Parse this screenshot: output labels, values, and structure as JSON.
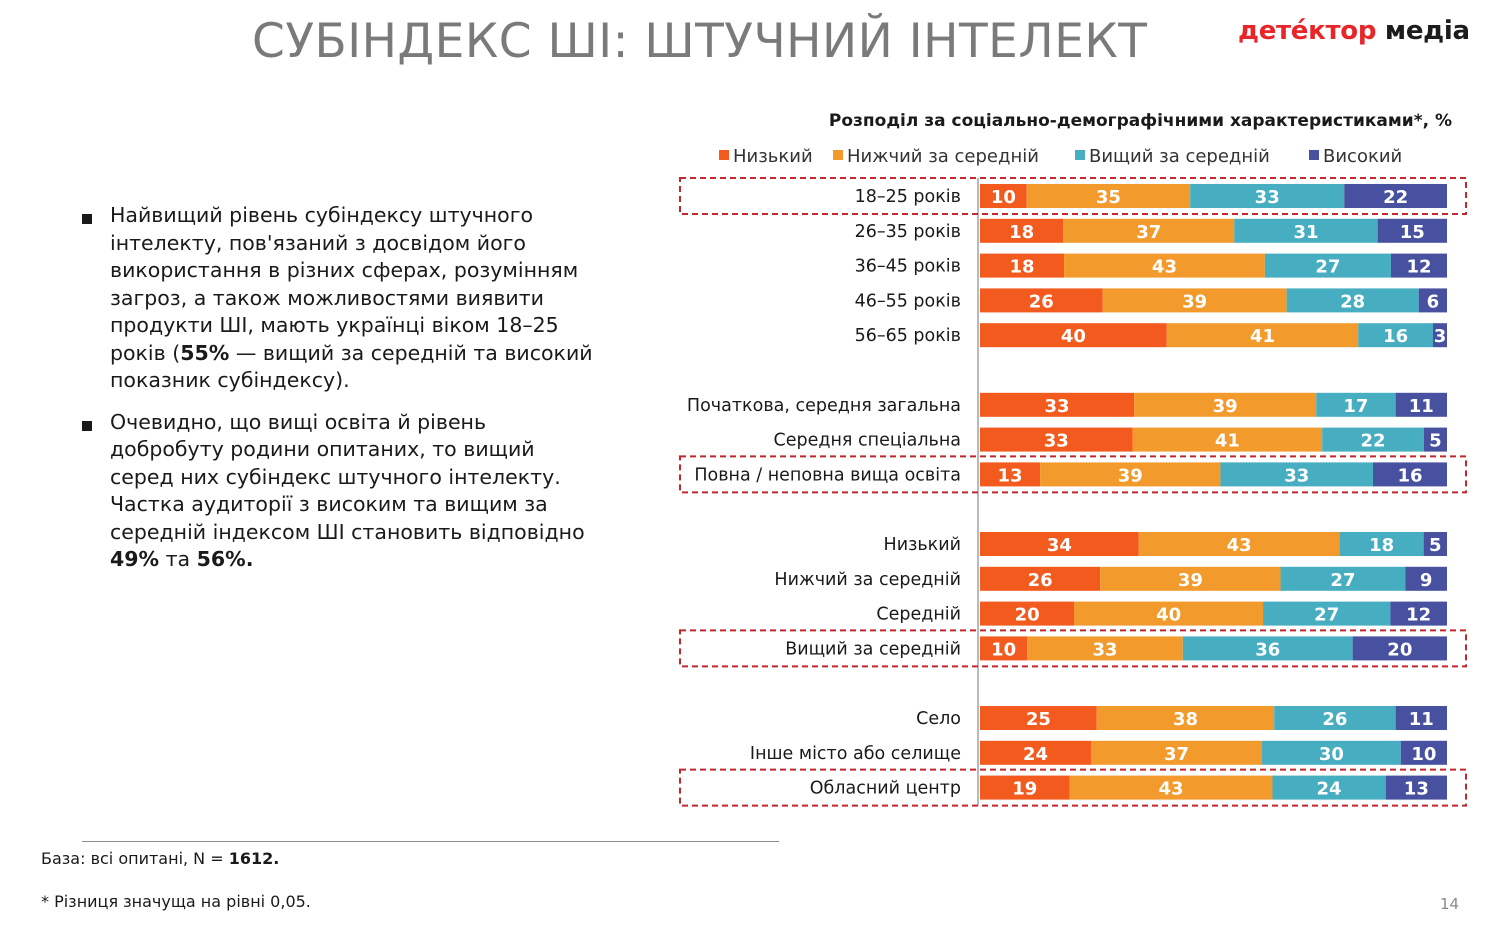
{
  "header": {
    "title": "СУБІНДЕКС ШІ: ШТУЧНИЙ ІНТЕЛЕКТ",
    "logo_part1": "детéктор",
    "logo_part2": "медіа"
  },
  "bullets": [
    {
      "t1": "Найвищий рівень субіндексу штучного інтелекту, пов'язаний з досвідом його використання в різних сферах, розумінням загроз, а також можливостями виявити продукти ШІ, мають українці віком 18–25 років (",
      "b1": "55%",
      "t2": " — вищий за середній та високий показник субіндексу)."
    },
    {
      "t1": "Очевидно, що вищі освіта й рівень добробуту родини опитаних, то вищий серед них субіндекс штучного інтелекту. Частка аудиторії з високим та вищим за середній індексом ШІ становить відповідно ",
      "b1": "49%",
      "t2": " та ",
      "b2": "56%."
    }
  ],
  "footer": {
    "base_prefix": "База: всі опитані, N = ",
    "base_n": "1612.",
    "significance": "* Різниця значуща на рівні 0,05.",
    "page": "14"
  },
  "chart_data": {
    "type": "bar",
    "orientation": "horizontal",
    "stacked": true,
    "title": "Розподіл за соціально-демографічними характеристиками*, %",
    "legend_position": "top",
    "series": [
      {
        "name": "Низький",
        "color": "#f25a1e"
      },
      {
        "name": "Нижчий за середній",
        "color": "#f39a2c"
      },
      {
        "name": "Вищий за середній",
        "color": "#47aec2"
      },
      {
        "name": "Високий",
        "color": "#47519f"
      }
    ],
    "groups": [
      {
        "rows": [
          {
            "label": "18–25 років",
            "values": [
              10,
              35,
              33,
              22
            ],
            "highlight": true
          },
          {
            "label": "26–35 років",
            "values": [
              18,
              37,
              31,
              15
            ]
          },
          {
            "label": "36–45 років",
            "values": [
              18,
              43,
              27,
              12
            ]
          },
          {
            "label": "46–55 років",
            "values": [
              26,
              39,
              28,
              6
            ]
          },
          {
            "label": "56–65 років",
            "values": [
              40,
              41,
              16,
              3
            ]
          }
        ]
      },
      {
        "rows": [
          {
            "label": "Початкова, середня загальна",
            "values": [
              33,
              39,
              17,
              11
            ]
          },
          {
            "label": "Середня спеціальна",
            "values": [
              33,
              41,
              22,
              5
            ]
          },
          {
            "label": "Повна / неповна вища освіта",
            "values": [
              13,
              39,
              33,
              16
            ],
            "highlight": true
          }
        ]
      },
      {
        "rows": [
          {
            "label": "Низький",
            "values": [
              34,
              43,
              18,
              5
            ]
          },
          {
            "label": "Нижчий за середній",
            "values": [
              26,
              39,
              27,
              9
            ]
          },
          {
            "label": "Середній",
            "values": [
              20,
              40,
              27,
              12
            ]
          },
          {
            "label": "Вищий за середній",
            "values": [
              10,
              33,
              36,
              20
            ],
            "highlight": true
          }
        ]
      },
      {
        "rows": [
          {
            "label": "Село",
            "values": [
              25,
              38,
              26,
              11
            ]
          },
          {
            "label": "Інше місто або селище",
            "values": [
              24,
              37,
              30,
              10
            ]
          },
          {
            "label": "Обласний центр",
            "values": [
              19,
              43,
              24,
              13
            ],
            "highlight": true
          }
        ]
      }
    ],
    "highlight_color": "#c0282d",
    "axis_color": "#8c8c8c"
  }
}
